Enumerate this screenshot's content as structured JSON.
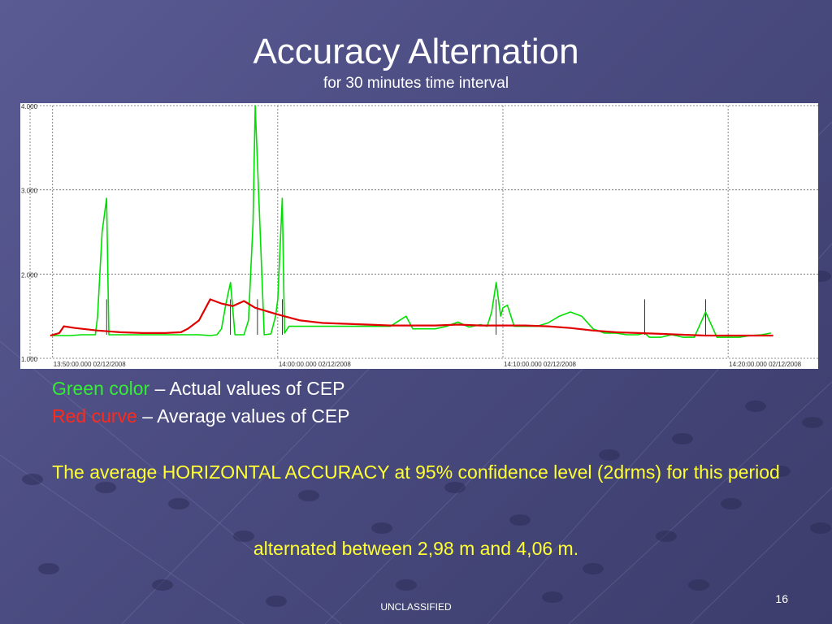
{
  "slide": {
    "title": "Accuracy Alternation",
    "subtitle": "for 30 minutes time interval",
    "legend": {
      "green_key": "Green color",
      "green_rest": " – Actual values of CEP",
      "red_key": "Red curve",
      "red_rest": " – Average values of CEP"
    },
    "summary_line1": "The average HORIZONTAL ACCURACY at 95% confidence level (2drms) for this period",
    "summary_line2": "alternated between 2,98 m and 4,06 m.",
    "footer": "UNCLASSIFIED",
    "page_number": "16"
  },
  "colors": {
    "actual": "#00e000",
    "average": "#e00000",
    "grid": "#666666",
    "spike": "#000000"
  },
  "chart_data": {
    "type": "line",
    "ylim": [
      1.0,
      4.0
    ],
    "xlim": [
      -1.0,
      34.0
    ],
    "y_ticks": [
      {
        "value": 1.0,
        "label": "1.000"
      },
      {
        "value": 2.0,
        "label": "2.000"
      },
      {
        "value": 3.0,
        "label": "3.000"
      },
      {
        "value": 4.0,
        "label": "4.000"
      }
    ],
    "x_ticks": [
      {
        "value": 0,
        "label": "13:50:00.000 02/12/2008"
      },
      {
        "value": 10,
        "label": "14:00:00.000 02/12/2008"
      },
      {
        "value": 20,
        "label": "14:10:00.000 02/12/2008"
      },
      {
        "value": 30,
        "label": "14:20:00.000 02/12/2008"
      }
    ],
    "grid": true,
    "series": [
      {
        "name": "Green color",
        "values_x": [
          -0.1,
          0.3,
          0.8,
          1.3,
          1.9,
          2.0,
          2.2,
          2.4,
          2.5,
          3.0,
          4.0,
          5.0,
          5.5,
          6.0,
          6.5,
          7.0,
          7.3,
          7.5,
          7.7,
          7.9,
          8.1,
          8.3,
          8.5,
          8.7,
          8.9,
          9.0,
          9.4,
          9.7,
          9.9,
          10.0,
          10.2,
          10.3,
          10.5,
          11.0,
          11.5,
          12.0,
          12.5,
          13.0,
          14.0,
          15.0,
          15.4,
          15.7,
          16.0,
          16.5,
          17.0,
          17.5,
          18.0,
          18.5,
          19.0,
          19.3,
          19.5,
          19.7,
          19.9,
          20.0,
          20.2,
          20.5,
          21.0,
          21.5,
          22.0,
          22.5,
          23.0,
          23.5,
          24.0,
          24.5,
          25.0,
          25.5,
          26.0,
          26.3,
          26.5,
          27.0,
          27.5,
          28.0,
          28.5,
          29.0,
          29.5,
          30.0,
          30.5,
          31.0,
          31.5,
          31.9
        ],
        "values_y": [
          1.27,
          1.27,
          1.27,
          1.28,
          1.28,
          1.5,
          2.5,
          2.9,
          1.28,
          1.28,
          1.28,
          1.28,
          1.28,
          1.28,
          1.28,
          1.27,
          1.28,
          1.35,
          1.65,
          1.9,
          1.28,
          1.28,
          1.28,
          1.45,
          2.6,
          4.0,
          1.28,
          1.29,
          1.5,
          1.7,
          2.9,
          1.3,
          1.38,
          1.38,
          1.38,
          1.38,
          1.38,
          1.38,
          1.38,
          1.38,
          1.45,
          1.5,
          1.35,
          1.35,
          1.35,
          1.38,
          1.43,
          1.37,
          1.4,
          1.38,
          1.55,
          1.9,
          1.5,
          1.6,
          1.63,
          1.38,
          1.38,
          1.38,
          1.42,
          1.5,
          1.55,
          1.5,
          1.35,
          1.3,
          1.3,
          1.28,
          1.28,
          1.3,
          1.25,
          1.25,
          1.28,
          1.25,
          1.25,
          1.55,
          1.25,
          1.25,
          1.25,
          1.27,
          1.28,
          1.3
        ]
      },
      {
        "name": "Red curve",
        "values_x": [
          -0.1,
          0.3,
          0.5,
          1.0,
          2.0,
          3.0,
          4.0,
          5.0,
          5.7,
          6.0,
          6.5,
          7.0,
          7.5,
          8.0,
          8.5,
          9.0,
          10.0,
          11.0,
          12.0,
          13.0,
          14.0,
          15.0,
          16.0,
          17.0,
          18.0,
          19.0,
          20.0,
          21.0,
          22.0,
          23.0,
          24.0,
          25.0,
          26.0,
          27.0,
          28.0,
          29.0,
          30.0,
          31.0,
          32.0
        ],
        "values_y": [
          1.27,
          1.3,
          1.38,
          1.36,
          1.33,
          1.31,
          1.3,
          1.3,
          1.31,
          1.35,
          1.45,
          1.7,
          1.65,
          1.62,
          1.68,
          1.6,
          1.52,
          1.45,
          1.42,
          1.41,
          1.4,
          1.39,
          1.39,
          1.39,
          1.4,
          1.39,
          1.39,
          1.39,
          1.38,
          1.36,
          1.33,
          1.31,
          1.3,
          1.29,
          1.28,
          1.27,
          1.27,
          1.27,
          1.27
        ]
      }
    ],
    "peak_markers_x": [
      2.4,
      7.9,
      9.1,
      10.2,
      19.7,
      26.3,
      29.0
    ]
  }
}
